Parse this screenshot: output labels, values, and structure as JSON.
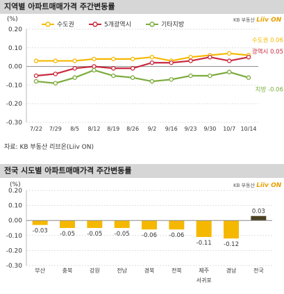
{
  "top": {
    "title": "지역별 아파트매매가격 주간변동률",
    "logo_small": "KB 부동산",
    "logo_brand": "Liiv ON",
    "chart": {
      "type": "line",
      "unit": "(%)",
      "ylim": [
        -0.3,
        0.2
      ],
      "yticks": [
        "0.20",
        "0.10",
        "0.00",
        "-0.10",
        "-0.20",
        "-0.30"
      ],
      "categories": [
        "7/22",
        "7/29",
        "8/5",
        "8/12",
        "8/19",
        "8/26",
        "9/2",
        "9/16",
        "9/23",
        "9/30",
        "10/7",
        "10/14"
      ],
      "series": [
        {
          "name": "수도권",
          "color": "#f5b800",
          "end_label": "수도권 0.06",
          "values": [
            0.03,
            0.03,
            0.03,
            0.04,
            0.04,
            0.04,
            0.05,
            0.03,
            0.05,
            0.06,
            0.07,
            0.06
          ]
        },
        {
          "name": "5개광역시",
          "color": "#c8283c",
          "end_label": "광역시 0.05",
          "values": [
            -0.05,
            -0.04,
            -0.01,
            0.0,
            -0.01,
            -0.01,
            0.02,
            0.02,
            0.03,
            0.05,
            0.03,
            0.05
          ]
        },
        {
          "name": "기타지방",
          "color": "#7bab3c",
          "end_label": "지방 -0.06",
          "values": [
            -0.08,
            -0.09,
            -0.06,
            -0.02,
            -0.05,
            -0.06,
            -0.08,
            -0.07,
            -0.05,
            -0.05,
            -0.03,
            -0.06
          ]
        }
      ]
    },
    "source": "자료: KB 부동산 리브온(Liiv ON)"
  },
  "bottom": {
    "title": "전국 시도별 아파트매매가격 주간변동률",
    "logo_small": "KB 부동산",
    "logo_brand": "Liiv ON",
    "chart": {
      "type": "bar",
      "unit": "(%)",
      "ylim": [
        -0.3,
        0.2
      ],
      "yticks": [
        "0.20",
        "0.10",
        "0.00",
        "-0.10",
        "-0.20",
        "-0.30"
      ],
      "categories": [
        "부산",
        "충북",
        "강원",
        "전남",
        "경북",
        "전북",
        "제주",
        "경남",
        "전국"
      ],
      "sub_label": "서귀포",
      "values": [
        -0.03,
        -0.05,
        -0.05,
        -0.05,
        -0.06,
        -0.06,
        -0.11,
        -0.12,
        0.03
      ],
      "value_labels": [
        "-0.03",
        "-0.05",
        "-0.05",
        "-0.05",
        "-0.06",
        "-0.06",
        "-0.11",
        "-0.12",
        "0.03"
      ],
      "bar_color": "#f5b800",
      "highlight_color": "#4b4224"
    }
  }
}
